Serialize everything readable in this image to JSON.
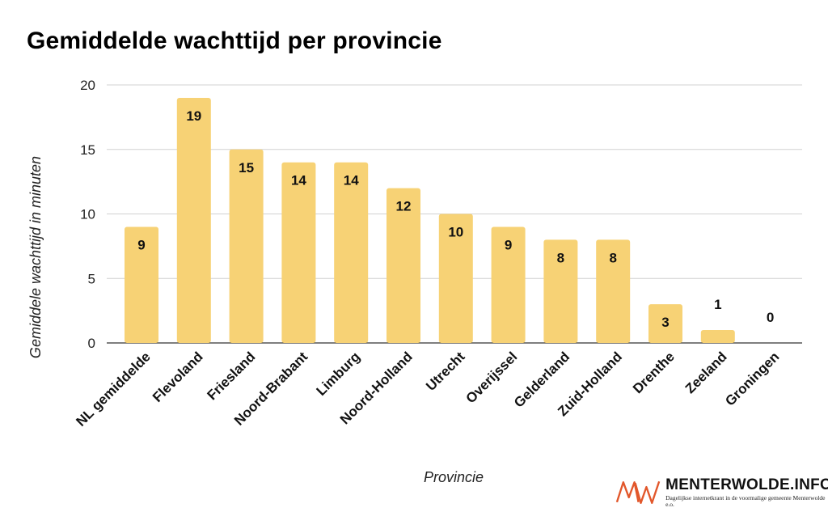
{
  "chart_data": {
    "type": "bar",
    "title": "Gemiddelde wachttijd per provincie",
    "xlabel": "Provincie",
    "ylabel": "Gemiddele wachttijd in minuten",
    "categories": [
      "NL gemiddelde",
      "Flevoland",
      "Friesland",
      "Noord-Brabant",
      "Limburg",
      "Noord-Holland",
      "Utrecht",
      "Overijssel",
      "Gelderland",
      "Zuid-Holland",
      "Drenthe",
      "Zeeland",
      "Groningen"
    ],
    "values": [
      9,
      19,
      15,
      14,
      14,
      12,
      10,
      9,
      8,
      8,
      3,
      1,
      0
    ],
    "ylim": [
      0,
      20
    ],
    "yticks": [
      0,
      5,
      10,
      15,
      20
    ],
    "grid": true,
    "bar_color": "#f7d275",
    "legend": "none"
  },
  "brand": {
    "name": "MENTERWOLDE.INFO",
    "tagline": "Dagelijkse internetkrant in de voormalige gemeente Menterwolde e.o.",
    "logo_color": "#e2572b",
    "logo_icon": "mw-logo-icon"
  }
}
